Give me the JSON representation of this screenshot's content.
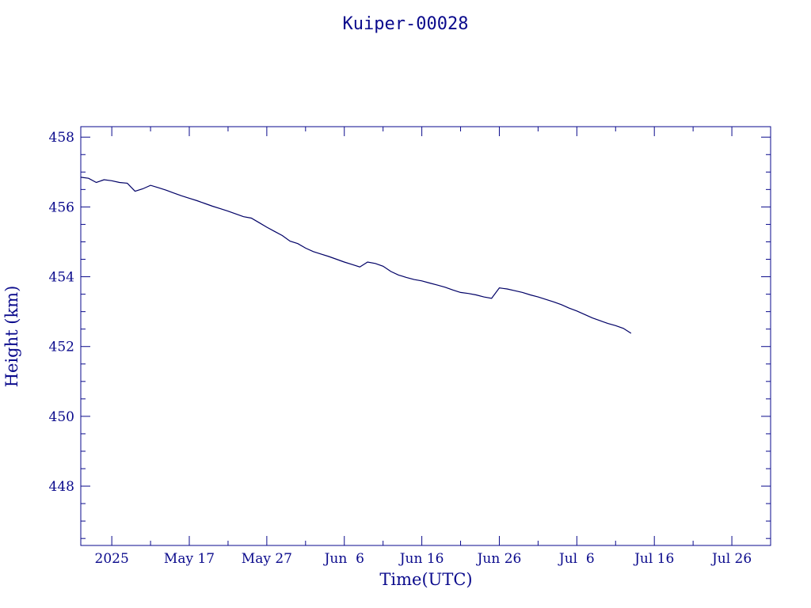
{
  "chart_data": {
    "type": "line",
    "title": "Kuiper-00028",
    "xlabel": "Time(UTC)",
    "ylabel": "Height (km)",
    "xlim": [
      "2025-05-03",
      "2025-07-31"
    ],
    "ylim": [
      446.3,
      458.3
    ],
    "yticks": [
      448,
      450,
      452,
      454,
      456,
      458
    ],
    "xtick_labels": [
      {
        "date": "2025-05-07",
        "label": "2025"
      },
      {
        "date": "2025-05-17",
        "label": "May 17"
      },
      {
        "date": "2025-05-27",
        "label": "May 27"
      },
      {
        "date": "2025-06-06",
        "label": "Jun  6"
      },
      {
        "date": "2025-06-16",
        "label": "Jun 16"
      },
      {
        "date": "2025-06-26",
        "label": "Jun 26"
      },
      {
        "date": "2025-07-06",
        "label": "Jul  6"
      },
      {
        "date": "2025-07-16",
        "label": "Jul 16"
      },
      {
        "date": "2025-07-26",
        "label": "Jul 26"
      }
    ],
    "grid": false,
    "line_color": "#000066",
    "axis_color": "#0a0a8c",
    "series": [
      {
        "x": [
          "2025-05-03",
          "2025-05-04",
          "2025-05-05",
          "2025-05-06",
          "2025-05-07",
          "2025-05-08",
          "2025-05-09",
          "2025-05-10",
          "2025-05-11",
          "2025-05-12",
          "2025-05-13",
          "2025-05-14",
          "2025-05-15",
          "2025-05-16",
          "2025-05-17",
          "2025-05-18",
          "2025-05-19",
          "2025-05-20",
          "2025-05-21",
          "2025-05-22",
          "2025-05-23",
          "2025-05-24",
          "2025-05-25",
          "2025-05-26",
          "2025-05-27",
          "2025-05-28",
          "2025-05-29",
          "2025-05-30",
          "2025-05-31",
          "2025-06-01",
          "2025-06-02",
          "2025-06-03",
          "2025-06-04",
          "2025-06-05",
          "2025-06-06",
          "2025-06-07",
          "2025-06-08",
          "2025-06-09",
          "2025-06-10",
          "2025-06-11",
          "2025-06-12",
          "2025-06-13",
          "2025-06-14",
          "2025-06-15",
          "2025-06-16",
          "2025-06-17",
          "2025-06-18",
          "2025-06-19",
          "2025-06-20",
          "2025-06-21",
          "2025-06-22",
          "2025-06-23",
          "2025-06-24",
          "2025-06-25",
          "2025-06-26",
          "2025-06-27",
          "2025-06-28",
          "2025-06-29",
          "2025-06-30",
          "2025-07-01",
          "2025-07-02",
          "2025-07-03",
          "2025-07-04",
          "2025-07-05",
          "2025-07-06",
          "2025-07-07",
          "2025-07-08",
          "2025-07-09",
          "2025-07-10",
          "2025-07-11",
          "2025-07-12",
          "2025-07-13"
        ],
        "values": [
          456.85,
          456.82,
          456.7,
          456.78,
          456.75,
          456.7,
          456.68,
          456.45,
          456.52,
          456.62,
          456.55,
          456.48,
          456.4,
          456.32,
          456.25,
          456.18,
          456.1,
          456.02,
          455.95,
          455.88,
          455.8,
          455.72,
          455.68,
          455.55,
          455.42,
          455.3,
          455.18,
          455.02,
          454.95,
          454.82,
          454.72,
          454.65,
          454.58,
          454.5,
          454.42,
          454.35,
          454.28,
          454.42,
          454.38,
          454.3,
          454.15,
          454.05,
          453.98,
          453.92,
          453.88,
          453.82,
          453.76,
          453.7,
          453.62,
          453.55,
          453.52,
          453.48,
          453.42,
          453.38,
          453.68,
          453.65,
          453.6,
          453.55,
          453.48,
          453.42,
          453.35,
          453.28,
          453.2,
          453.1,
          453.02,
          452.92,
          452.82,
          452.74,
          452.66,
          452.6,
          452.52,
          452.38
        ]
      }
    ]
  }
}
